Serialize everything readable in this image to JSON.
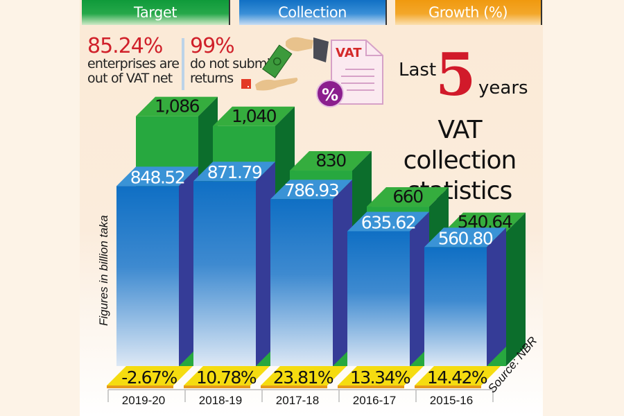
{
  "legend": [
    {
      "label": "Target",
      "color": "#1a9e3f"
    },
    {
      "label": "Collection",
      "color": "#1c7ccb"
    },
    {
      "label": "Growth (%)",
      "color": "#f29a12"
    }
  ],
  "stats": [
    {
      "value": "85.24%",
      "line1": "enterprises are",
      "line2": "out of VAT net"
    },
    {
      "value": "99%",
      "line1": "do not submit",
      "line2": "returns"
    }
  ],
  "illustration": {
    "document_label": "VAT",
    "badge_label": "%"
  },
  "title": {
    "last": "Last",
    "number": "5",
    "years": "years",
    "line1": "VAT collection",
    "line2": "statistics"
  },
  "ylabel": "Figures in billion taka",
  "source": "Source: NBR",
  "colors": {
    "target": "#27a83f",
    "target_side": "#0c6e2c",
    "collection": "#1c7ccb",
    "collection_side": "#353c97",
    "growth": "#f5dc10",
    "growth_edge": "#e69a1c",
    "accent_red": "#d11a2a"
  },
  "chart_data": {
    "type": "bar",
    "title": "Last 5 years VAT collection statistics",
    "xlabel": "",
    "ylabel": "Figures in billion taka",
    "categories": [
      "2019-20",
      "2018-19",
      "2017-18",
      "2016-17",
      "2015-16"
    ],
    "series": [
      {
        "name": "Target",
        "values": [
          1086,
          1040,
          830,
          660,
          540.64
        ],
        "labels": [
          "1,086",
          "1,040",
          "830",
          "660",
          "540.64"
        ]
      },
      {
        "name": "Collection",
        "values": [
          848.52,
          871.79,
          786.93,
          635.62,
          560.8
        ],
        "labels": [
          "848.52",
          "871.79",
          "786.93",
          "635.62",
          "560.80"
        ]
      },
      {
        "name": "Growth (%)",
        "values": [
          -2.67,
          10.78,
          23.81,
          13.34,
          14.42
        ],
        "labels": [
          "-2.67%",
          "10.78%",
          "23.81%",
          "13.34%",
          "14.42%"
        ]
      }
    ],
    "legend_position": "top",
    "grid": false,
    "source": "NBR"
  }
}
